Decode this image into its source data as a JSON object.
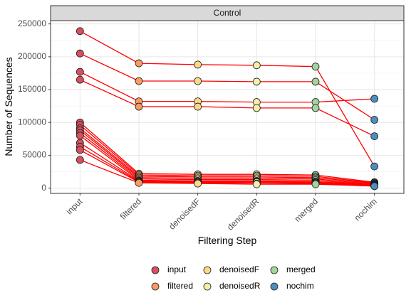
{
  "chart_data": {
    "type": "line",
    "facet_label": "Control",
    "xlabel": "Filtering Step",
    "ylabel": "Number of Sequences",
    "categories": [
      "input",
      "filtered",
      "denoisedF",
      "denoisedR",
      "merged",
      "nochim"
    ],
    "ylim": [
      -8000,
      255000
    ],
    "yticks": [
      0,
      50000,
      100000,
      150000,
      200000,
      250000
    ],
    "grid": true,
    "legend_position": "bottom",
    "line_color": "#ff0000",
    "category_colors": {
      "input": "#d7505f",
      "filtered": "#f99a63",
      "denoisedF": "#fbd88a",
      "denoisedR": "#f2efaa",
      "merged": "#a2d59e",
      "nochim": "#4c8ec0"
    },
    "samples": [
      {
        "values": [
          239000,
          190000,
          188000,
          187000,
          185000,
          33000
        ]
      },
      {
        "values": [
          205000,
          163000,
          163000,
          162000,
          162000,
          104000
        ]
      },
      {
        "values": [
          177000,
          132000,
          132000,
          131000,
          131000,
          136000
        ]
      },
      {
        "values": [
          165000,
          124000,
          124000,
          122000,
          122000,
          79000
        ]
      },
      {
        "values": [
          100000,
          22000,
          21000,
          21000,
          20000,
          9000
        ]
      },
      {
        "values": [
          96000,
          20000,
          19000,
          19000,
          18000,
          8000
        ]
      },
      {
        "values": [
          91000,
          18000,
          17000,
          17000,
          16000,
          7000
        ]
      },
      {
        "values": [
          88000,
          16000,
          15000,
          15000,
          14000,
          6000
        ]
      },
      {
        "values": [
          84000,
          14000,
          13000,
          13000,
          12000,
          5000
        ]
      },
      {
        "values": [
          80000,
          12000,
          11000,
          11000,
          10000,
          5000
        ]
      },
      {
        "values": [
          69000,
          11000,
          10000,
          10000,
          9000,
          4000
        ]
      },
      {
        "values": [
          63000,
          10000,
          9000,
          9000,
          8000,
          4000
        ]
      },
      {
        "values": [
          58000,
          9000,
          8000,
          7000,
          7000,
          3000
        ]
      },
      {
        "values": [
          43000,
          8000,
          7000,
          6000,
          6000,
          3000
        ]
      }
    ],
    "legend": [
      [
        "input",
        "denoisedF",
        "merged"
      ],
      [
        "filtered",
        "denoisedR",
        "nochim"
      ]
    ]
  }
}
